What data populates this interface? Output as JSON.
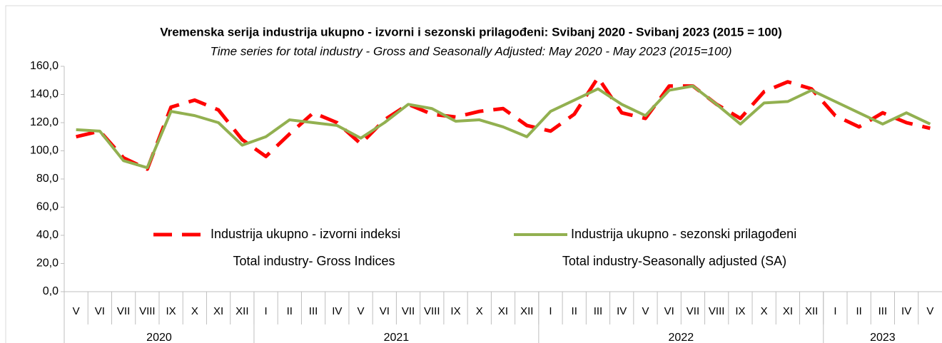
{
  "chart_data": {
    "type": "line",
    "title": "Vremenska serija industrija ukupno - izvorni i sezonski prilagođeni: Svibanj 2020 - Svibanj 2023 (2015 = 100)",
    "subtitle": "Time series for total industry - Gross and Seasonally Adjusted: May 2020 - May 2023 (2015=100)",
    "categories": [
      "V",
      "VI",
      "VII",
      "VIII",
      "IX",
      "X",
      "XI",
      "XII",
      "I",
      "II",
      "III",
      "IV",
      "V",
      "VI",
      "VII",
      "VIII",
      "IX",
      "X",
      "XI",
      "XII",
      "I",
      "II",
      "III",
      "IV",
      "V",
      "VI",
      "VII",
      "VIII",
      "IX",
      "X",
      "XI",
      "XII",
      "I",
      "II",
      "III",
      "IV",
      "V"
    ],
    "year_groups": [
      {
        "label": "2020",
        "count": 8
      },
      {
        "label": "2021",
        "count": 12
      },
      {
        "label": "2022",
        "count": 12
      },
      {
        "label": "2023",
        "count": 5
      }
    ],
    "series": [
      {
        "name": "Industrija ukupno - izvorni indeksi",
        "name_en": "Total industry- Gross Indices",
        "color": "#ff0000",
        "dashed": true,
        "values": [
          110,
          114,
          95,
          87,
          131,
          136,
          129,
          108,
          96,
          112,
          127,
          120,
          105,
          122,
          133,
          126,
          124,
          128,
          130,
          118,
          114,
          126,
          152,
          127,
          123,
          146,
          146,
          133,
          123,
          142,
          149,
          144,
          125,
          117,
          127,
          120,
          116
        ]
      },
      {
        "name": "Industrija ukupno - sezonski prilagođeni",
        "name_en": "Total industry-Seasonally adjusted (SA)",
        "color": "#92b050",
        "dashed": false,
        "values": [
          115,
          114,
          93,
          88,
          128,
          125,
          120,
          104,
          110,
          122,
          120,
          118,
          109,
          120,
          133,
          130,
          121,
          122,
          117,
          110,
          128,
          136,
          144,
          133,
          125,
          143,
          146,
          133,
          119,
          134,
          135,
          143,
          135,
          127,
          119,
          127,
          119
        ]
      }
    ],
    "ylim": [
      0,
      160
    ],
    "yticks": [
      {
        "value": 0,
        "label": "0,0"
      },
      {
        "value": 20,
        "label": "20,0"
      },
      {
        "value": 40,
        "label": "40,0"
      },
      {
        "value": 60,
        "label": "60,0"
      },
      {
        "value": 80,
        "label": "80,0"
      },
      {
        "value": 100,
        "label": "100,0"
      },
      {
        "value": 120,
        "label": "120,0"
      },
      {
        "value": 140,
        "label": "140,0"
      },
      {
        "value": 160,
        "label": "160,0"
      }
    ],
    "grid": false
  }
}
